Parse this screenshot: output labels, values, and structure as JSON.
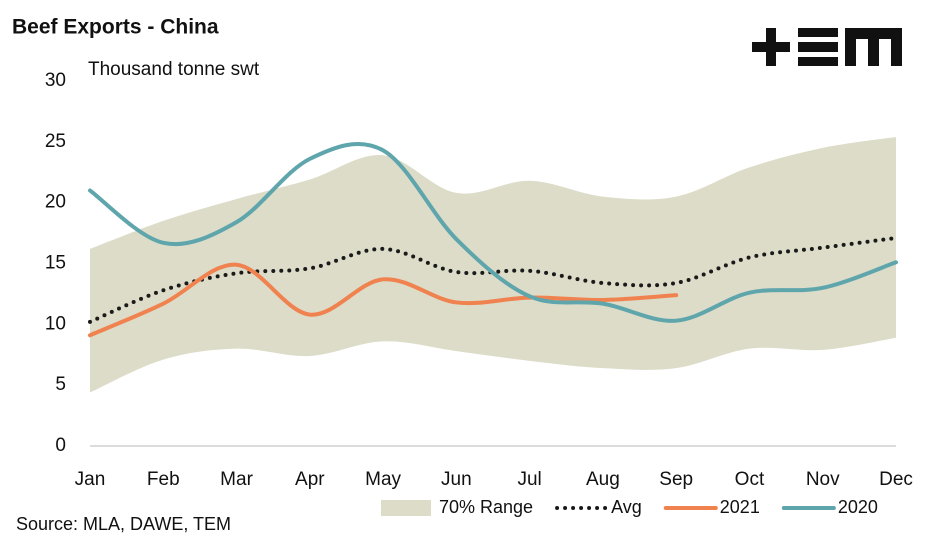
{
  "chart_data": {
    "type": "line",
    "title": "Beef Exports - China",
    "y_label": "Thousand tonne swt",
    "source": "Source: MLA, DAWE, TEM",
    "categories": [
      "Jan",
      "Feb",
      "Mar",
      "Apr",
      "May",
      "Jun",
      "Jul",
      "Aug",
      "Sep",
      "Oct",
      "Nov",
      "Dec"
    ],
    "ylim": [
      0,
      30
    ],
    "yticks": [
      0,
      5,
      10,
      15,
      20,
      25,
      30
    ],
    "series": [
      {
        "name": "70% Range",
        "color": "#dcdcc8",
        "type": "band",
        "lower": [
          4.4,
          7.1,
          8.0,
          7.4,
          8.6,
          7.8,
          7.0,
          6.4,
          6.4,
          8.0,
          7.9,
          8.9
        ],
        "upper": [
          16.2,
          18.5,
          20.3,
          21.9,
          23.9,
          20.8,
          21.8,
          20.5,
          20.5,
          22.9,
          24.5,
          25.4
        ]
      },
      {
        "name": "Avg",
        "color": "#1a1a1a",
        "style": "dotted",
        "values": [
          10.2,
          12.8,
          14.2,
          14.6,
          16.2,
          14.3,
          14.4,
          13.4,
          13.4,
          15.5,
          16.3,
          17.1
        ]
      },
      {
        "name": "2021",
        "color": "#f08250",
        "values": [
          9.1,
          11.7,
          14.9,
          10.8,
          13.7,
          11.8,
          12.2,
          12.0,
          12.4,
          null,
          null,
          null
        ]
      },
      {
        "name": "2020",
        "color": "#5fa5ac",
        "values": [
          21.0,
          16.7,
          18.4,
          23.6,
          24.3,
          17.0,
          12.3,
          11.7,
          10.3,
          12.6,
          13.0,
          15.1
        ]
      }
    ]
  }
}
